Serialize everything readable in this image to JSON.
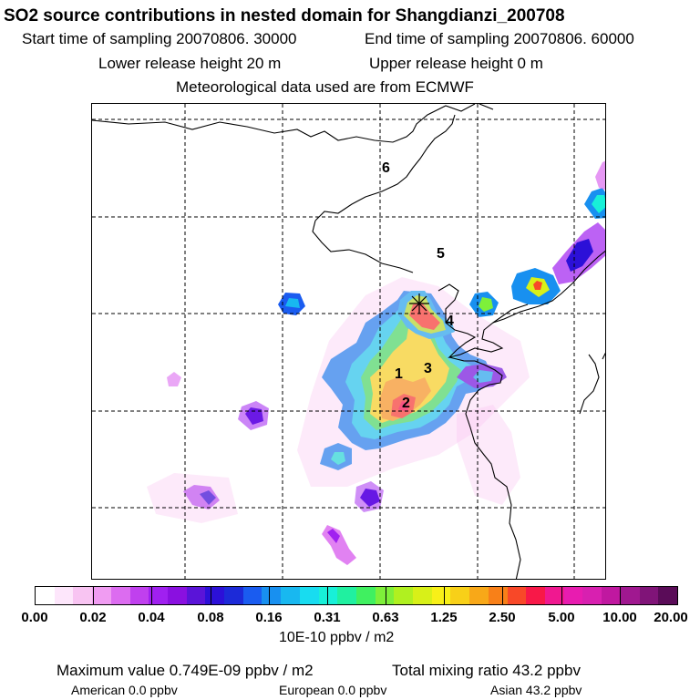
{
  "header": {
    "title": "SO2 source contributions in nested domain for Shangdianzi_200708",
    "start_time": "Start time of sampling 20070806. 30000",
    "end_time": "End time of sampling 20070806. 60000",
    "lower_release": "Lower release height   20 m",
    "upper_release": "Upper release height    0 m",
    "met_data": "Meteorological data used are from ECMWF"
  },
  "map": {
    "region_labels": [
      "1",
      "2",
      "3",
      "4",
      "5",
      "6"
    ],
    "station_marker": "receptor-star"
  },
  "colorbar": {
    "colors": [
      "#ffffff",
      "#fde6fb",
      "#f8c4f2",
      "#f09cf2",
      "#dc6cf0",
      "#c040ee",
      "#a020f0",
      "#8a10e0",
      "#5a14d8",
      "#2c10d8",
      "#1c2ad8",
      "#1a5cf0",
      "#1890f0",
      "#18b8f0",
      "#18dcf0",
      "#18f0d8",
      "#20f0a0",
      "#40f060",
      "#7ef03a",
      "#b0f020",
      "#d8f018",
      "#f8f018",
      "#f8d018",
      "#f8a818",
      "#f88018",
      "#f84828",
      "#f81848",
      "#f01890",
      "#e81cb0",
      "#d820b0",
      "#c018a0",
      "#a01890",
      "#801478",
      "#5a0c58"
    ],
    "labels": [
      "0.00",
      "0.02",
      "0.04",
      "0.08",
      "0.16",
      "0.31",
      "0.63",
      "1.25",
      "2.50",
      "5.00",
      "10.00",
      "20.00"
    ],
    "units": "10E-10 ppbv / m2"
  },
  "footer": {
    "max_value": "Maximum value  0.749E-09 ppbv / m2",
    "total_mixing": "Total mixing ratio      43.2 ppbv",
    "american": "American        0.0 ppbv",
    "european": "European        0.0 ppbv",
    "asian": "Asian      43.2 ppbv"
  }
}
